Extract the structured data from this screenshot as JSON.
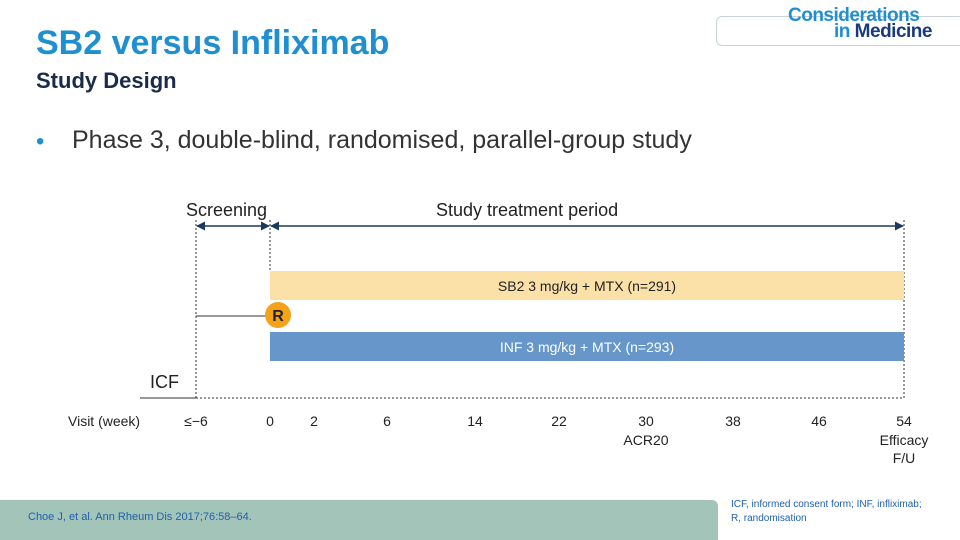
{
  "header": {
    "title": "SB2 versus Infliximab",
    "subtitle": "Study Design",
    "logo_line1": "Considerations",
    "logo_line2a": "in ",
    "logo_line2b": "Medicine"
  },
  "bullets": [
    {
      "marker": "•",
      "text": "Phase 3, double-blind, randomised, parallel-group study"
    }
  ],
  "diagram": {
    "phase_screening": "Screening",
    "phase_treatment": "Study treatment period",
    "randomisation_marker": "R",
    "icf_label": "ICF",
    "visit_axis_label": "Visit (week)",
    "visits": [
      "≤−6",
      "0",
      "2",
      "6",
      "14",
      "22",
      "30",
      "38",
      "46",
      "54"
    ],
    "visit_notes": {
      "30": "ACR20",
      "54_line1": "Efficacy",
      "54_line2": "F/U"
    },
    "arms": [
      {
        "label": "SB2 3 mg/kg + MTX (n=291)",
        "color": "#fbe0a8",
        "text_color": "#222222"
      },
      {
        "label": "INF 3 mg/kg + MTX (n=293)",
        "color": "#6797ca",
        "text_color": "#ffffff"
      }
    ],
    "marker_color": "#f5a21b",
    "line_color": "#1b3a5e"
  },
  "footer": {
    "reference": "Choe J, et al. Ann Rheum Dis 2017;76:58–64.",
    "abbreviations_line1": "ICF, informed consent form; INF, infliximab;",
    "abbreviations_line2": "R, randomisation"
  }
}
